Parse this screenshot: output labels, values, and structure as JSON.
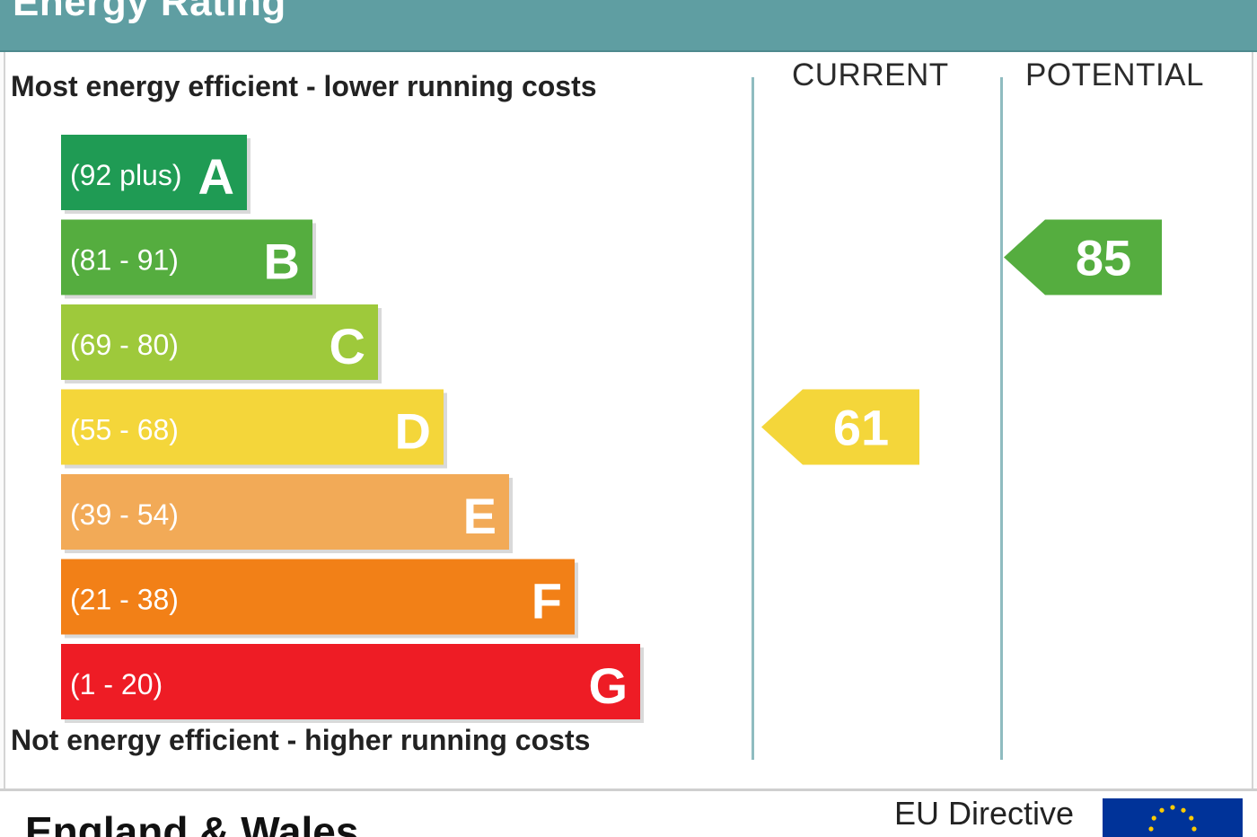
{
  "header": {
    "title": "Energy Rating"
  },
  "chart_data": {
    "type": "bar",
    "top_note": "Most energy efficient - lower running costs",
    "bottom_note": "Not energy efficient - higher running costs",
    "bands": [
      {
        "letter": "A",
        "range": "(92 plus)",
        "color": "#1f9b54"
      },
      {
        "letter": "B",
        "range": "(81 - 91)",
        "color": "#55ad3f"
      },
      {
        "letter": "C",
        "range": "(69 - 80)",
        "color": "#9ec93b"
      },
      {
        "letter": "D",
        "range": "(55 - 68)",
        "color": "#f4d63a"
      },
      {
        "letter": "E",
        "range": "(39 - 54)",
        "color": "#f2aa57"
      },
      {
        "letter": "F",
        "range": "(21 - 38)",
        "color": "#f28017"
      },
      {
        "letter": "G",
        "range": "(1 - 20)",
        "color": "#ee1c25"
      }
    ],
    "columns": {
      "current": "CURRENT",
      "potential": "POTENTIAL"
    },
    "current": {
      "value": 61,
      "band": "D",
      "color": "#f4d63a"
    },
    "potential": {
      "value": 85,
      "band": "B",
      "color": "#55ad3f"
    }
  },
  "footer": {
    "region": "England & Wales",
    "directive": "EU Directive"
  },
  "icons": {
    "flag": "eu-flag-icon"
  }
}
